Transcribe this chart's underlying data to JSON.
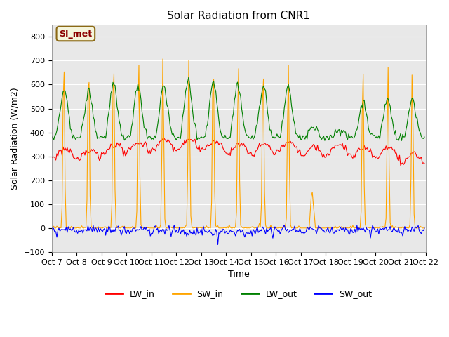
{
  "title": "Solar Radiation from CNR1",
  "xlabel": "Time",
  "ylabel": "Solar Radiation (W/m2)",
  "ylim": [
    -100,
    850
  ],
  "xlim": [
    0,
    360
  ],
  "plot_bg_color": "#e8e8e8",
  "legend_labels": [
    "LW_in",
    "SW_in",
    "LW_out",
    "SW_out"
  ],
  "legend_colors": [
    "red",
    "orange",
    "green",
    "blue"
  ],
  "annotation_text": "SI_met",
  "annotation_color": "#8b0000",
  "annotation_bg": "#f5f5dc",
  "annotation_border": "#8b6914",
  "x_tick_labels": [
    "Oct 7",
    "Oct 8",
    "Oct 9",
    "Oct 10",
    "Oct 11",
    "Oct 12",
    "Oct 13",
    "Oct 14",
    "Oct 15",
    "Oct 16",
    "Oct 17",
    "Oct 18",
    "Oct 19",
    "Oct 20",
    "Oct 21",
    "Oct 22"
  ],
  "x_tick_positions": [
    0,
    24,
    48,
    72,
    96,
    120,
    144,
    168,
    192,
    216,
    240,
    264,
    288,
    312,
    336,
    360
  ],
  "yticks": [
    -100,
    0,
    100,
    200,
    300,
    400,
    500,
    600,
    700,
    800
  ]
}
